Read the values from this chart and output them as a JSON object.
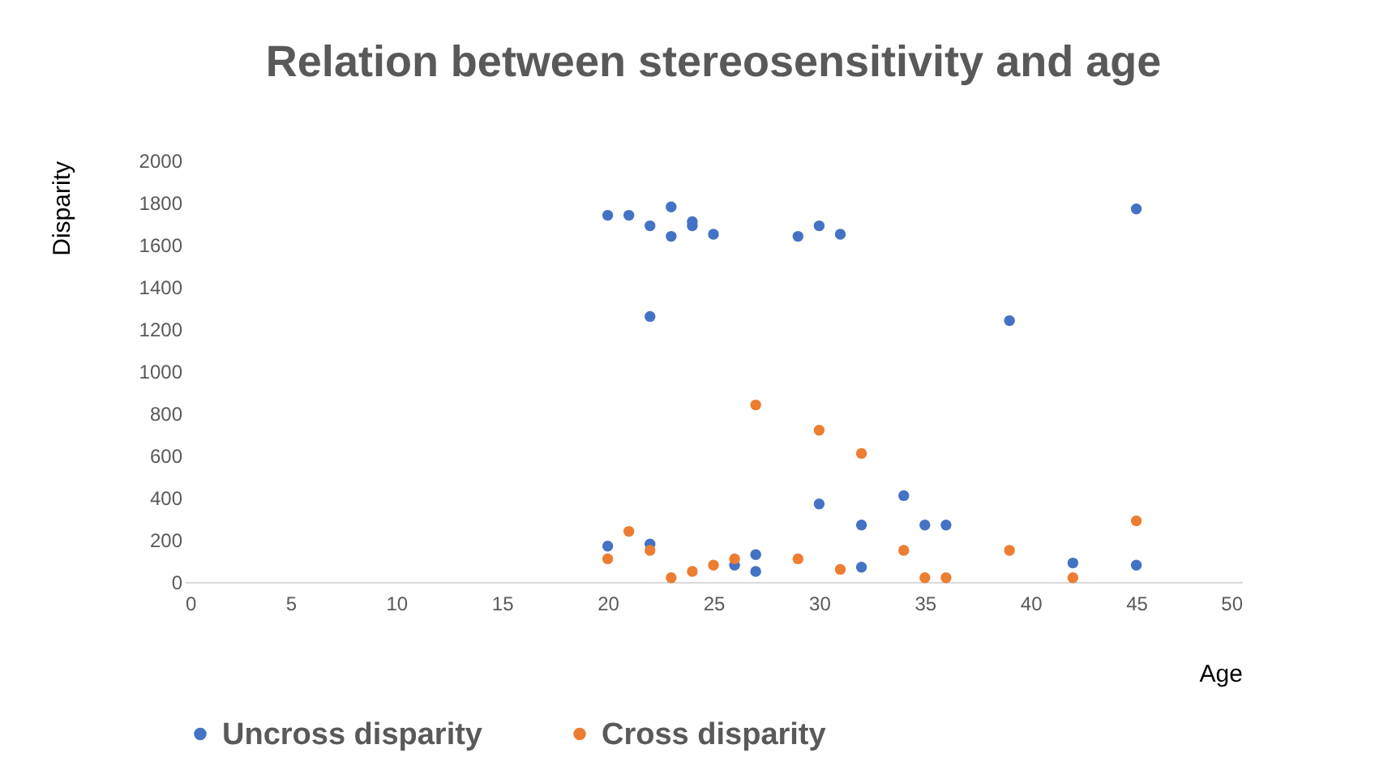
{
  "chart_data": {
    "type": "scatter",
    "title": "Relation between stereosensitivity and age",
    "xlabel": "Age",
    "ylabel": "Disparity",
    "xlim": [
      0,
      50
    ],
    "xticks": [
      0,
      5,
      10,
      15,
      20,
      25,
      30,
      35,
      40,
      45,
      50
    ],
    "ylim": [
      0,
      2000
    ],
    "yticks": [
      0,
      200,
      400,
      600,
      800,
      1000,
      1200,
      1400,
      1600,
      1800,
      2000
    ],
    "grid": false,
    "legend": "bottom",
    "marker": "circle",
    "series": [
      {
        "name": "Uncross disparity",
        "color": "#4472c4",
        "x": [
          20,
          21,
          22,
          23,
          23,
          24,
          24,
          25,
          29,
          30,
          31,
          45,
          22,
          39,
          20,
          22,
          26,
          27,
          27,
          30,
          32,
          32,
          34,
          35,
          36,
          42,
          45
        ],
        "values": [
          1740,
          1740,
          1690,
          1780,
          1640,
          1710,
          1690,
          1650,
          1640,
          1690,
          1650,
          1770,
          1260,
          1240,
          170,
          180,
          80,
          130,
          50,
          370,
          270,
          70,
          410,
          270,
          270,
          90,
          80
        ]
      },
      {
        "name": "Cross disparity",
        "color": "#ed7d31",
        "x": [
          20,
          21,
          22,
          23,
          24,
          25,
          26,
          27,
          29,
          30,
          31,
          32,
          34,
          35,
          36,
          39,
          42,
          45
        ],
        "values": [
          110,
          240,
          150,
          20,
          50,
          80,
          110,
          840,
          110,
          720,
          60,
          610,
          150,
          20,
          20,
          150,
          20,
          290
        ]
      }
    ]
  }
}
